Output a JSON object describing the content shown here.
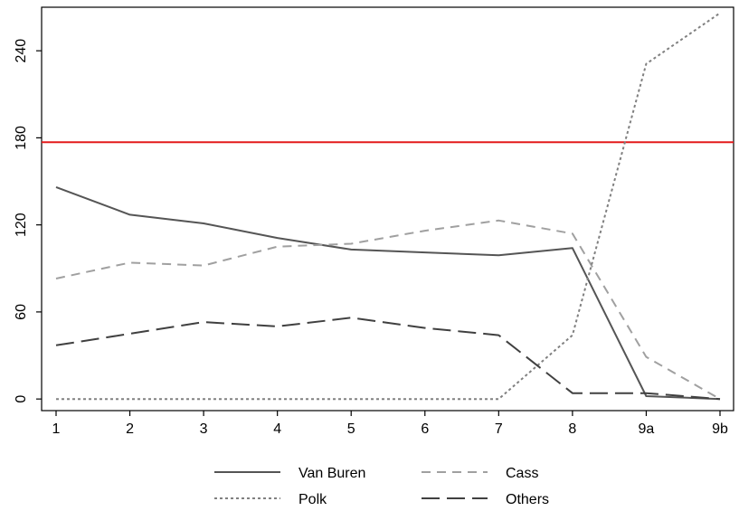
{
  "chart_data": {
    "type": "line",
    "title": "",
    "xlabel": "",
    "ylabel": "",
    "categories": [
      "1",
      "2",
      "3",
      "4",
      "5",
      "6",
      "7",
      "8",
      "9a",
      "9b"
    ],
    "ylim": [
      -8,
      270
    ],
    "yticks": [
      0,
      60,
      120,
      180,
      240
    ],
    "grid": false,
    "legend_position": "bottom",
    "reference_line": {
      "value": 177,
      "color": "#e41a1c"
    },
    "series": [
      {
        "name": "Van Buren",
        "color": "#555555",
        "dash": "solid",
        "values": [
          146,
          127,
          121,
          111,
          103,
          101,
          99,
          104,
          2,
          0
        ]
      },
      {
        "name": "Cass",
        "color": "#a0a0a0",
        "dash": "dashed",
        "values": [
          83,
          94,
          92,
          105,
          107,
          116,
          123,
          114,
          29,
          0
        ]
      },
      {
        "name": "Polk",
        "color": "#808080",
        "dash": "dotted",
        "values": [
          0,
          0,
          0,
          0,
          0,
          0,
          0,
          44,
          231,
          266
        ]
      },
      {
        "name": "Others",
        "color": "#404040",
        "dash": "longdash",
        "values": [
          37,
          45,
          53,
          50,
          56,
          49,
          44,
          4,
          4,
          0
        ]
      }
    ]
  }
}
